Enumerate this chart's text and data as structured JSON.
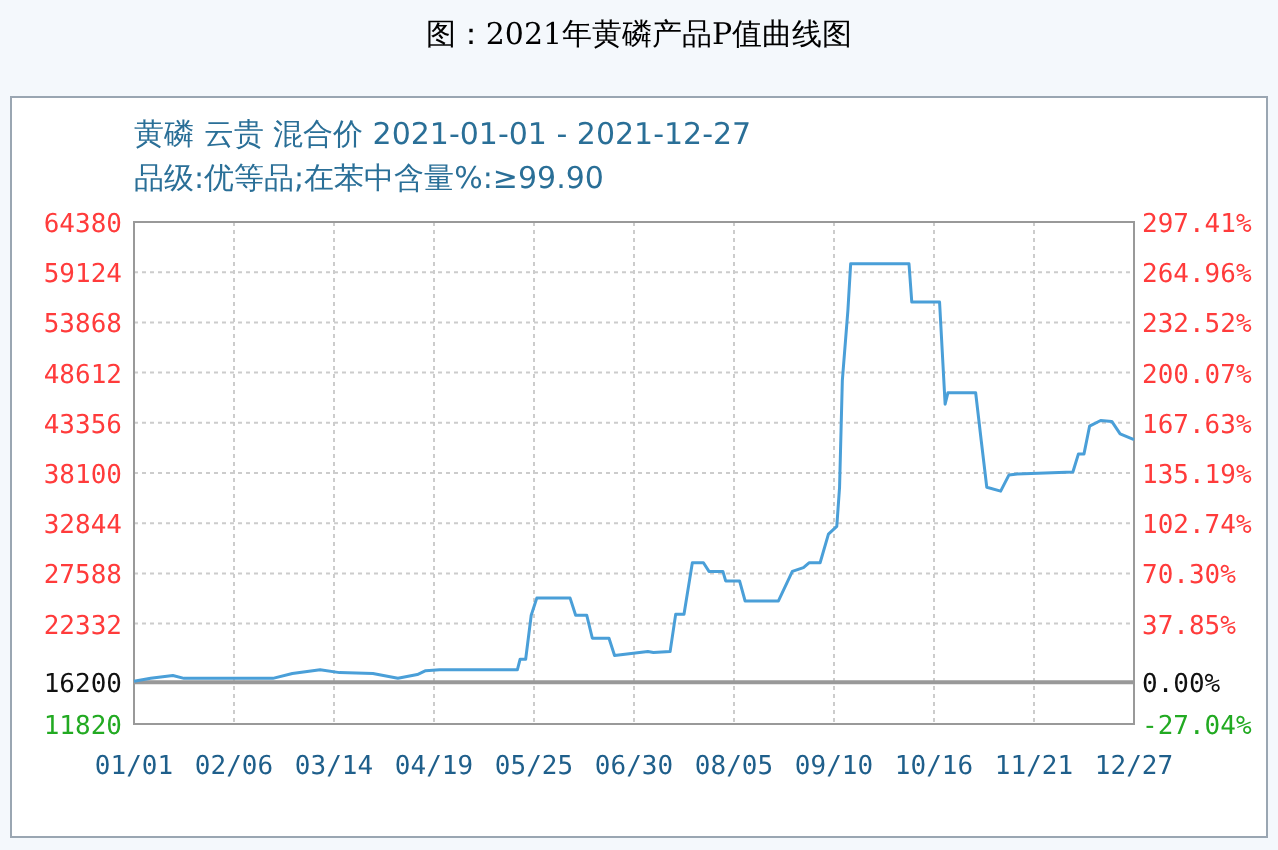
{
  "chart_data": {
    "type": "line",
    "title": "图：2021年黄磷产品P值曲线图",
    "subtitle": "黄磷 云贵 混合价 2021-01-01 - 2021-12-27\n品级:优等品;在苯中含量%:≥99.90",
    "x": [
      "2021-01-01",
      "2021-01-07",
      "2021-01-15",
      "2021-01-19",
      "2021-02-20",
      "2021-02-27",
      "2021-03-09",
      "2021-03-16",
      "2021-03-28",
      "2021-04-06",
      "2021-04-13",
      "2021-04-16",
      "2021-04-21",
      "2021-05-19",
      "2021-05-20",
      "2021-05-22",
      "2021-05-24",
      "2021-05-26",
      "2021-06-07",
      "2021-06-09",
      "2021-06-13",
      "2021-06-15",
      "2021-06-21",
      "2021-06-23",
      "2021-07-05",
      "2021-07-07",
      "2021-07-13",
      "2021-07-15",
      "2021-07-18",
      "2021-07-21",
      "2021-07-25",
      "2021-07-27",
      "2021-08-01",
      "2021-08-02",
      "2021-08-07",
      "2021-08-09",
      "2021-08-21",
      "2021-08-26",
      "2021-08-30",
      "2021-09-01",
      "2021-09-05",
      "2021-09-08",
      "2021-09-11",
      "2021-09-12",
      "2021-09-13",
      "2021-09-15",
      "2021-09-16",
      "2021-10-07",
      "2021-10-08",
      "2021-10-18",
      "2021-10-20",
      "2021-10-21",
      "2021-10-31",
      "2021-11-02",
      "2021-11-04",
      "2021-11-09",
      "2021-11-12",
      "2021-11-15",
      "2021-12-05",
      "2021-12-07",
      "2021-12-09",
      "2021-12-11",
      "2021-12-15",
      "2021-12-19",
      "2021-12-22",
      "2021-12-27"
    ],
    "series": [
      {
        "color": "#4a9fd8",
        "values": [
          16300,
          16600,
          16900,
          16600,
          16600,
          17100,
          17500,
          17200,
          17100,
          16600,
          17000,
          17400,
          17500,
          17500,
          18600,
          18600,
          23200,
          25000,
          25000,
          23200,
          23200,
          20800,
          20800,
          19000,
          19400,
          19300,
          19400,
          23300,
          23300,
          28700,
          28700,
          27800,
          27800,
          26800,
          26800,
          24700,
          24700,
          27800,
          28200,
          28700,
          28700,
          31700,
          32500,
          36600,
          47800,
          55100,
          60000,
          60000,
          56000,
          56000,
          45300,
          46500,
          46500,
          41500,
          36600,
          36200,
          37900,
          38000,
          38200,
          40100,
          40100,
          43000,
          43600,
          43500,
          42200,
          41600
        ]
      }
    ],
    "xlim": [
      "2021-01-01",
      "2021-12-27"
    ],
    "xticks": [
      {
        "value": "2021-01-01",
        "label": "01/01"
      },
      {
        "value": "2021-02-06",
        "label": "02/06"
      },
      {
        "value": "2021-03-14",
        "label": "03/14"
      },
      {
        "value": "2021-04-19",
        "label": "04/19"
      },
      {
        "value": "2021-05-25",
        "label": "05/25"
      },
      {
        "value": "2021-06-30",
        "label": "06/30"
      },
      {
        "value": "2021-08-05",
        "label": "08/05"
      },
      {
        "value": "2021-09-10",
        "label": "09/10"
      },
      {
        "value": "2021-10-16",
        "label": "10/16"
      },
      {
        "value": "2021-11-21",
        "label": "11/21"
      },
      {
        "value": "2021-12-27",
        "label": "12/27"
      }
    ],
    "ylim": [
      11820,
      64380
    ],
    "yticks": [
      11820,
      16200,
      22332,
      27588,
      32844,
      38100,
      43356,
      48612,
      53868,
      59124,
      64380
    ],
    "y2lim": [
      -27.04,
      297.41
    ],
    "y2ticks": [
      {
        "value": -27.04,
        "label": "-27.04%"
      },
      {
        "value": 0,
        "label": "0.00%"
      },
      {
        "value": 37.85,
        "label": "37.85%"
      },
      {
        "value": 70.3,
        "label": "70.30%"
      },
      {
        "value": 102.74,
        "label": "102.74%"
      },
      {
        "value": 135.19,
        "label": "135.19%"
      },
      {
        "value": 167.63,
        "label": "167.63%"
      },
      {
        "value": 200.07,
        "label": "200.07%"
      },
      {
        "value": 232.52,
        "label": "232.52%"
      },
      {
        "value": 264.96,
        "label": "264.96%"
      },
      {
        "value": 297.41,
        "label": "297.41%"
      }
    ],
    "ref_lines": [
      {
        "axis": "y",
        "value": 16200,
        "color": "#999999"
      }
    ],
    "grid": true,
    "marker": "none",
    "line_style": "solid"
  }
}
